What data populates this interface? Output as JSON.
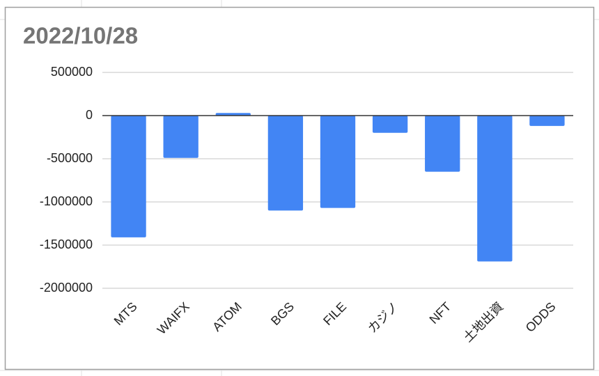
{
  "chart_data": {
    "type": "bar",
    "title": "2022/10/28",
    "categories": [
      "MTS",
      "WAIFX",
      "ATOM",
      "BGS",
      "FILE",
      "カジノ",
      "NFT",
      "土地出資",
      "ODDS"
    ],
    "values": [
      -1410000,
      -490000,
      30000,
      -1100000,
      -1070000,
      -200000,
      -650000,
      -1690000,
      -120000
    ],
    "color": "#4285f4",
    "ylim": [
      -2000000,
      500000
    ],
    "yticks": [
      -2000000,
      -1500000,
      -1000000,
      -500000,
      0,
      500000
    ],
    "grid": true
  }
}
